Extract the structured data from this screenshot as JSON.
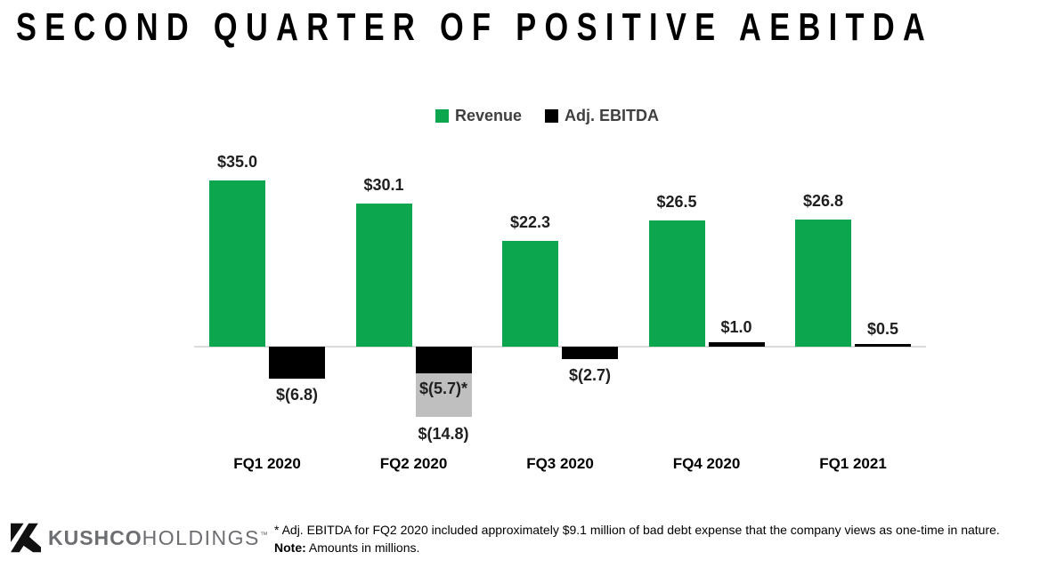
{
  "title": "SECOND QUARTER OF POSITIVE AEBITDA",
  "legend": {
    "revenue": {
      "label": "Revenue",
      "color": "#0CA64F"
    },
    "aebitda": {
      "label": "Adj. EBITDA",
      "color": "#000000"
    }
  },
  "chart_data": {
    "type": "bar",
    "categories": [
      "FQ1 2020",
      "FQ2 2020",
      "FQ3 2020",
      "FQ4 2020",
      "FQ1 2021"
    ],
    "series": [
      {
        "name": "Revenue",
        "color": "#0CA64F",
        "values": [
          35.0,
          30.1,
          22.3,
          26.5,
          26.8
        ],
        "labels": [
          "$35.0",
          "$30.1",
          "$22.3",
          "$26.5",
          "$26.8"
        ]
      },
      {
        "name": "Adj. EBITDA",
        "color": "#000000",
        "values": [
          -6.8,
          -5.7,
          -2.7,
          1.0,
          0.5
        ],
        "labels": [
          "$(6.8)",
          "$(5.7)*",
          "$(2.7)",
          "$1.0",
          "$0.5"
        ]
      }
    ],
    "extra_segment": {
      "category_index": 1,
      "from": -5.7,
      "to": -14.8,
      "color": "#BFBFBF",
      "label": "$(14.8)"
    },
    "title": "",
    "xlabel": "",
    "ylabel": "",
    "units": "millions",
    "baseline": 0,
    "grid": false,
    "legend_position": "top-center"
  },
  "footer": {
    "logo_brand": "KUSHCO",
    "logo_suffix": "HOLDINGS",
    "logo_trademark": "™",
    "footnote": "* Adj. EBITDA for FQ2 2020 included approximately $9.1 million of bad debt expense that the company views as one-time in nature.",
    "note_label": "Note:",
    "note_text": " Amounts in millions."
  },
  "colors": {
    "revenue_green": "#0CA64F",
    "ebitda_black": "#000000",
    "onetime_gray": "#BFBFBF",
    "axis_line": "#DCDCDC",
    "legend_text": "#404040",
    "logo_gray": "#6D6E71"
  }
}
